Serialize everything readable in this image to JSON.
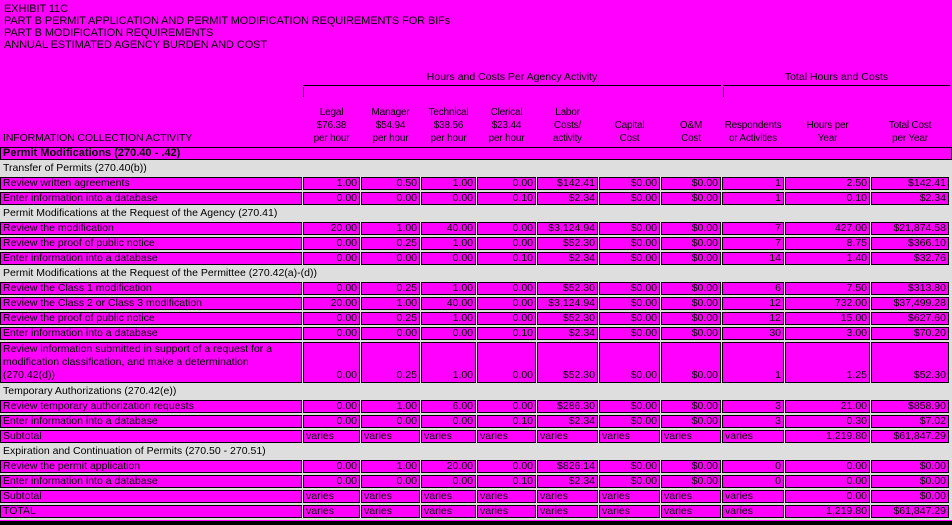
{
  "titles": [
    "EXHIBIT 11C",
    "PART B PERMIT APPLICATION AND PERMIT MODIFICATION REQUIREMENTS FOR BIFs",
    "PART B MODIFICATION REQUIREMENTS",
    "ANNUAL ESTIMATED AGENCY BURDEN AND COST"
  ],
  "table": {
    "group_headers": {
      "agency": "Hours and Costs Per Agency Activity",
      "totals": "Total Hours and Costs"
    },
    "activity_header": "INFORMATION COLLECTION ACTIVITY",
    "columns": [
      [
        "Legal",
        "$76.38",
        "per hour"
      ],
      [
        "Manager",
        "$54.94",
        "per hour"
      ],
      [
        "Technical",
        "$38.56",
        "per hour"
      ],
      [
        "Clerical",
        "$23.44",
        "per hour"
      ],
      [
        "Labor",
        "Costs/",
        "activity"
      ],
      [
        "Capital",
        "Cost"
      ],
      [
        "O&M",
        "Cost"
      ],
      [
        "Respondents",
        "or Activities"
      ],
      [
        "Hours per",
        "Year"
      ],
      [
        "Total Cost",
        "per Year"
      ]
    ],
    "rows": [
      {
        "type": "bold",
        "label": "Permit Modifications (270.40 - .42)"
      },
      {
        "type": "section",
        "label": "Transfer of Permits (270.40(b))"
      },
      {
        "type": "data",
        "label": "Review written agreements",
        "values": [
          "1.00",
          "0.50",
          "1.00",
          "0.00",
          "$142.41",
          "$0.00",
          "$0.00",
          "1",
          "2.50",
          "$142.41"
        ]
      },
      {
        "type": "data",
        "label": "Enter information into a database",
        "values": [
          "0.00",
          "0.00",
          "0.00",
          "0.10",
          "$2.34",
          "$0.00",
          "$0.00",
          "1",
          "0.10",
          "$2.34"
        ]
      },
      {
        "type": "section",
        "label": "Permit Modifications at the Request of the Agency (270.41)"
      },
      {
        "type": "data",
        "label": "Review the modification",
        "values": [
          "20.00",
          "1.00",
          "40.00",
          "0.00",
          "$3,124.94",
          "$0.00",
          "$0.00",
          "7",
          "427.00",
          "$21,874.58"
        ]
      },
      {
        "type": "data",
        "label": "Review the proof of public notice",
        "values": [
          "0.00",
          "0.25",
          "1.00",
          "0.00",
          "$52.30",
          "$0.00",
          "$0.00",
          "7",
          "8.75",
          "$366.10"
        ]
      },
      {
        "type": "data",
        "label": "Enter information into a database",
        "values": [
          "0.00",
          "0.00",
          "0.00",
          "0.10",
          "$2.34",
          "$0.00",
          "$0.00",
          "14",
          "1.40",
          "$32.76"
        ]
      },
      {
        "type": "section",
        "label": "Permit Modifications at the Request of the Permittee  (270.42(a)-(d))"
      },
      {
        "type": "data",
        "label": "Review the Class 1 modification",
        "values": [
          "0.00",
          "0.25",
          "1.00",
          "0.00",
          "$52.30",
          "$0.00",
          "$0.00",
          "6",
          "7.50",
          "$313.80"
        ]
      },
      {
        "type": "data",
        "label": "Review the Class 2 or Class 3 modification",
        "values": [
          "20.00",
          "1.00",
          "40.00",
          "0.00",
          "$3,124.94",
          "$0.00",
          "$0.00",
          "12",
          "732.00",
          "$37,499.28"
        ]
      },
      {
        "type": "data",
        "label": "Review the proof of public notice",
        "values": [
          "0.00",
          "0.25",
          "1.00",
          "0.00",
          "$52.30",
          "$0.00",
          "$0.00",
          "12",
          "15.00",
          "$627.60"
        ]
      },
      {
        "type": "data",
        "label": "Enter information into a database",
        "values": [
          "0.00",
          "0.00",
          "0.00",
          "0.10",
          "$2.34",
          "$0.00",
          "$0.00",
          "30",
          "3.00",
          "$70.20"
        ]
      },
      {
        "type": "data",
        "multiline": true,
        "label": "Review information submitted in support of a request for a modification classification, and make a determination (270.42(d))",
        "values": [
          "0.00",
          "0.25",
          "1.00",
          "0.00",
          "$52.30",
          "$0.00",
          "$0.00",
          "1",
          "1.25",
          "$52.30"
        ]
      },
      {
        "type": "section",
        "label": "Temporary Authorizations (270.42(e))"
      },
      {
        "type": "data",
        "label": "Review temporary authorization requests",
        "values": [
          "0.00",
          "1.00",
          "6.00",
          "0.00",
          "$286.30",
          "$0.00",
          "$0.00",
          "3",
          "21.00",
          "$858.90"
        ]
      },
      {
        "type": "data",
        "label": "Enter information into a database",
        "values": [
          "0.00",
          "0.00",
          "0.00",
          "0.10",
          "$2.34",
          "$0.00",
          "$0.00",
          "3",
          "0.30",
          "$7.02"
        ]
      },
      {
        "type": "subtotal",
        "label": "Subtotal",
        "values": [
          "varies",
          "varies",
          "varies",
          "varies",
          "varies",
          "varies",
          "varies",
          "varies",
          "1,219.80",
          "$61,847.29"
        ]
      },
      {
        "type": "section",
        "label": "Expiration and Continuation of Permits (270.50 - 270.51)"
      },
      {
        "type": "data",
        "label": "Review the permit application",
        "values": [
          "0.00",
          "1.00",
          "20.00",
          "0.00",
          "$826.14",
          "$0.00",
          "$0.00",
          "0",
          "0.00",
          "$0.00"
        ]
      },
      {
        "type": "data",
        "label": "Enter information into a database",
        "values": [
          "0.00",
          "0.00",
          "0.00",
          "0.10",
          "$2.34",
          "$0.00",
          "$0.00",
          "0",
          "0.00",
          "$0.00"
        ]
      },
      {
        "type": "subtotal",
        "label": "Subtotal",
        "values": [
          "varies",
          "varies",
          "varies",
          "varies",
          "varies",
          "varies",
          "varies",
          "varies",
          "0.00",
          "$0.00"
        ]
      },
      {
        "type": "total",
        "label": "TOTAL",
        "values": [
          "varies",
          "varies",
          "varies",
          "varies",
          "varies",
          "varies",
          "varies",
          "varies",
          "1,219.80",
          "$61,847.29"
        ]
      }
    ]
  },
  "colors": {
    "magenta": "#ff00ff",
    "band": "#dedede",
    "text": "#000000",
    "border": "#000000"
  }
}
